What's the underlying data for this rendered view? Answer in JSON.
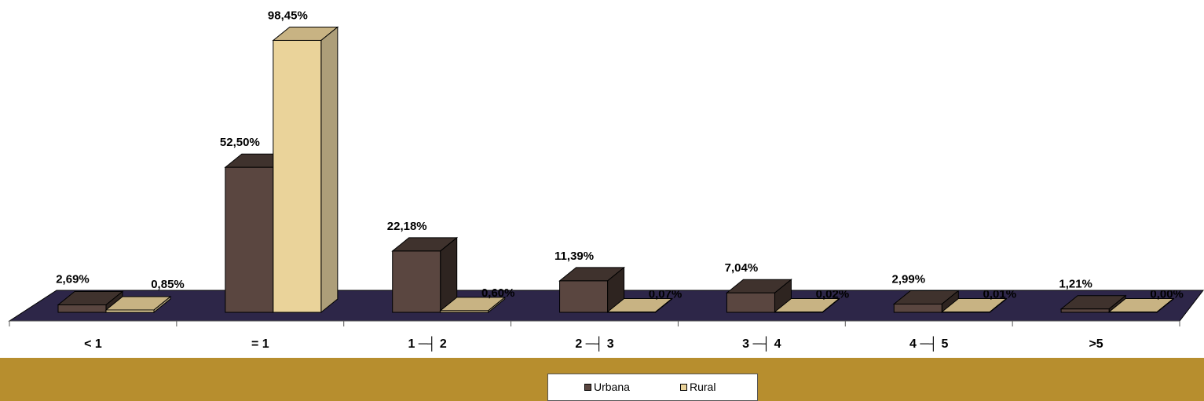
{
  "chart_data": {
    "type": "bar",
    "categories": [
      "< 1",
      "= 1",
      "1 ─┤ 2",
      "2 ─┤ 3",
      "3 ─┤ 4",
      "4 ─┤ 5",
      ">5"
    ],
    "series": [
      {
        "name": "Urbana",
        "values": [
          2.69,
          52.5,
          22.18,
          11.39,
          7.04,
          2.99,
          1.21
        ],
        "labels": [
          "2,69%",
          "52,50%",
          "22,18%",
          "11,39%",
          "7,04%",
          "2,99%",
          "1,21%"
        ]
      },
      {
        "name": "Rural",
        "values": [
          0.85,
          98.45,
          0.6,
          0.07,
          0.02,
          0.01,
          0.0
        ],
        "labels": [
          "0,85%",
          "98,45%",
          "0,60%",
          "0,07%",
          "0,02%",
          "0,01%",
          "0,00%"
        ]
      }
    ],
    "ylim": [
      0,
      100
    ],
    "grid": false,
    "legend": "bottom",
    "view": "3d-columns"
  },
  "colors": {
    "urbana": "#5a4640",
    "urbana_top": "#3f322d",
    "urbana_side": "#2e2420",
    "rural": "#ead39a",
    "rural_top": "#c8b383",
    "rural_side": "#ad9e79",
    "floor": "#2d2648",
    "band": "#b78e2e"
  }
}
